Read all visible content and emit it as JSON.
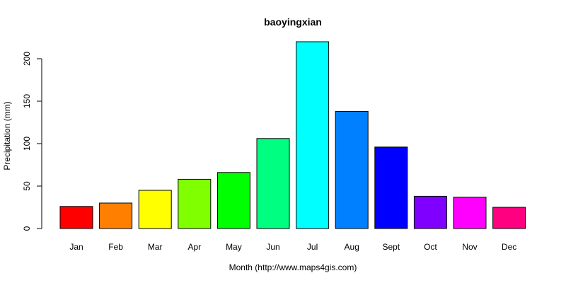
{
  "chart_data": {
    "type": "bar",
    "title": "baoyingxian",
    "xlabel": "Month (http://www.maps4gis.com)",
    "ylabel": "Precipitation (mm)",
    "categories": [
      "Jan",
      "Feb",
      "Mar",
      "Apr",
      "May",
      "Jun",
      "Jul",
      "Aug",
      "Sept",
      "Oct",
      "Nov",
      "Dec"
    ],
    "values": [
      26,
      30,
      45,
      58,
      66,
      106,
      220,
      138,
      96,
      38,
      37,
      25
    ],
    "colors": [
      "#FF0000",
      "#FF8000",
      "#FFFF00",
      "#80FF00",
      "#00FF00",
      "#00FF80",
      "#00FFFF",
      "#0080FF",
      "#0000FF",
      "#8000FF",
      "#FF00FF",
      "#FF0080"
    ],
    "ylim": [
      0,
      220
    ],
    "yticks": [
      0,
      50,
      100,
      150,
      200
    ],
    "grid": false,
    "legend": "none"
  }
}
